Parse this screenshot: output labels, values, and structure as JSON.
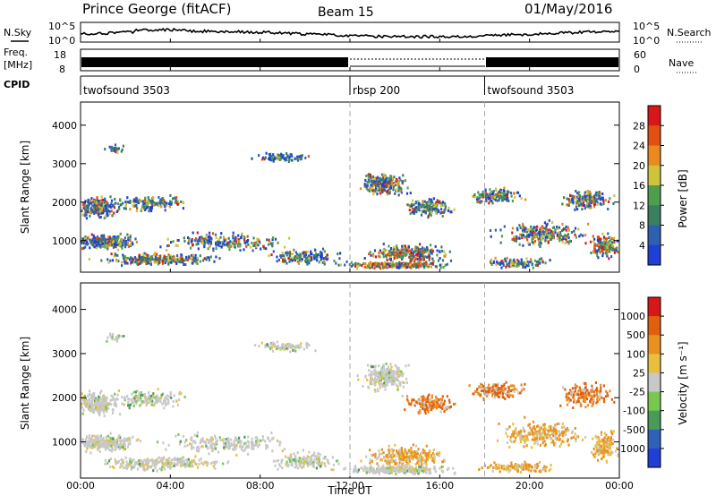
{
  "header": {
    "station": "Prince George (fitACF)",
    "beam": "Beam 15",
    "date": "01/May/2016"
  },
  "panels": {
    "nsky_label": "N.Sky",
    "nsearch_label": "N.Search",
    "freq_label_1": "Freq.",
    "freq_label_2": "[MHz]",
    "nave_label": "Nave",
    "cpid_label": "CPID",
    "nsky_ticks": [
      "10^5",
      "10^0"
    ],
    "nsearch_ticks": [
      "10^5",
      "10^0"
    ],
    "freq_ticks": [
      "18",
      "8"
    ],
    "nave_ticks": [
      "60",
      "0"
    ],
    "cpid_segments": [
      {
        "label": "twofsound 3503",
        "start_hour": 0
      },
      {
        "label": "rbsp 200",
        "start_hour": 12
      },
      {
        "label": "twofsound 3503",
        "start_hour": 18
      }
    ]
  },
  "chart_data": [
    {
      "type": "heatmap",
      "name": "power",
      "ylabel": "Slant Range [km]",
      "xlim_hours": [
        0,
        24
      ],
      "ylim": [
        180,
        4600
      ],
      "yticks": [
        1000,
        2000,
        3000,
        4000
      ],
      "colorbar": {
        "label": "Power [dB]",
        "ticks": [
          "4",
          "8",
          "12",
          "16",
          "20",
          "24",
          "28"
        ],
        "colors": [
          "#1f3fd6",
          "#2f5fb0",
          "#3a8060",
          "#4e9e4e",
          "#d0c33c",
          "#e88a20",
          "#e05010",
          "#d81818"
        ]
      },
      "mode_changes_hours": [
        12,
        18
      ]
    },
    {
      "type": "heatmap",
      "name": "velocity",
      "ylabel": "Slant Range [km]",
      "xlabel": "Time UT",
      "xlim_hours": [
        0,
        24
      ],
      "ylim": [
        180,
        4600
      ],
      "yticks": [
        1000,
        2000,
        3000,
        4000
      ],
      "xticks": [
        "00:00",
        "04:00",
        "08:00",
        "12:00",
        "16:00",
        "20:00",
        "00:00"
      ],
      "colorbar": {
        "label": "Velocity [m s⁻¹]",
        "ticks": [
          "1000",
          "500",
          "100",
          "25",
          "-25",
          "-100",
          "-500",
          "-1000"
        ],
        "colors": [
          "#1f3fd6",
          "#3060b8",
          "#4a9a5a",
          "#78c850",
          "#c8c8c8",
          "#e8c040",
          "#e89020",
          "#e06010",
          "#d81818"
        ]
      },
      "mode_changes_hours": [
        12,
        18
      ]
    }
  ]
}
